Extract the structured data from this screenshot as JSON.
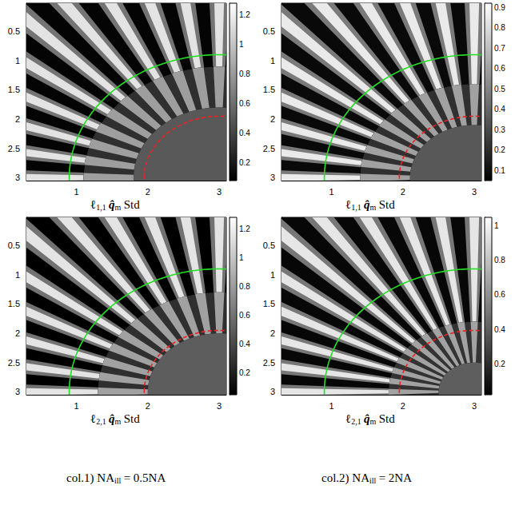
{
  "chart_data": [
    {
      "type": "image",
      "caption": [
        {
          "text": "ℓ",
          "sub": "1,1"
        },
        {
          "text": "q̂",
          "sub": "m"
        },
        {
          "text": "Std"
        }
      ],
      "xlim": [
        0.3,
        3.1
      ],
      "xticks": [
        1,
        2,
        3
      ],
      "ylim": [
        0.02,
        3.05
      ],
      "yticks": [
        0.5,
        1,
        1.5,
        2,
        2.5,
        3
      ],
      "colorbar": {
        "range": [
          0.08,
          1.28
        ],
        "ticks": [
          0.2,
          0.4,
          0.6,
          0.8,
          1,
          1.2
        ]
      },
      "star_center": [
        3,
        3
      ],
      "spoke_angles": [
        0,
        9,
        18,
        27,
        36,
        45,
        54,
        63,
        72,
        81,
        90
      ],
      "bright_value": 1.15,
      "dark_value": 0.1,
      "center_value": 0.5,
      "full_contrast_radius": 1.9,
      "blur_radius": 1.2,
      "circles": [
        {
          "center": [
            3,
            3
          ],
          "radius": 2.1,
          "color": "#22e022",
          "line_style": "solid"
        },
        {
          "center": [
            3,
            3
          ],
          "radius": 1.05,
          "color": "#ee2222",
          "line_style": "dashed"
        }
      ]
    },
    {
      "type": "image",
      "caption": [
        {
          "text": "ℓ",
          "sub": "1,1"
        },
        {
          "text": "q̂",
          "sub": "m"
        },
        {
          "text": "Std"
        }
      ],
      "xlim": [
        0.3,
        3.1
      ],
      "xticks": [
        1,
        2,
        3
      ],
      "ylim": [
        0.02,
        3.05
      ],
      "yticks": [
        0.5,
        1,
        1.5,
        2,
        2.5,
        3
      ],
      "colorbar": {
        "range": [
          0.05,
          0.92
        ],
        "ticks": [
          0.1,
          0.2,
          0.3,
          0.4,
          0.5,
          0.6,
          0.7,
          0.8,
          0.9
        ]
      },
      "star_center": [
        3,
        3
      ],
      "spoke_angles": [
        0,
        9,
        18,
        27,
        36,
        45,
        54,
        63,
        72,
        81,
        90
      ],
      "bright_value": 0.85,
      "dark_value": 0.08,
      "center_value": 0.35,
      "full_contrast_radius": 1.6,
      "blur_radius": 0.9,
      "circles": [
        {
          "center": [
            3,
            3
          ],
          "radius": 2.1,
          "color": "#22e022",
          "line_style": "solid"
        },
        {
          "center": [
            3,
            3
          ],
          "radius": 1.05,
          "color": "#ee2222",
          "line_style": "dashed"
        }
      ]
    },
    {
      "type": "image",
      "caption": [
        {
          "text": "ℓ",
          "sub": "2,1"
        },
        {
          "text": "q̂",
          "sub": "m"
        },
        {
          "text": "Std"
        }
      ],
      "xlim": [
        0.3,
        3.1
      ],
      "xticks": [
        1,
        2,
        3
      ],
      "ylim": [
        0.02,
        3.05
      ],
      "yticks": [
        0.5,
        1,
        1.5,
        2,
        2.5,
        3
      ],
      "colorbar": {
        "range": [
          0.05,
          1.28
        ],
        "ticks": [
          0.2,
          0.4,
          0.6,
          0.8,
          1,
          1.2
        ]
      },
      "star_center": [
        3,
        3
      ],
      "spoke_angles": [
        0,
        9,
        18,
        27,
        36,
        45,
        54,
        63,
        72,
        81,
        90
      ],
      "bright_value": 1.15,
      "dark_value": 0.05,
      "center_value": 0.5,
      "full_contrast_radius": 1.7,
      "blur_radius": 1.0,
      "circles": [
        {
          "center": [
            3,
            3
          ],
          "radius": 2.1,
          "color": "#22e022",
          "line_style": "solid"
        },
        {
          "center": [
            3,
            3
          ],
          "radius": 1.05,
          "color": "#ee2222",
          "line_style": "dashed"
        }
      ]
    },
    {
      "type": "image",
      "caption": [
        {
          "text": "ℓ",
          "sub": "2,1"
        },
        {
          "text": "q̂",
          "sub": "m"
        },
        {
          "text": "Std"
        }
      ],
      "xlim": [
        0.3,
        3.1
      ],
      "xticks": [
        1,
        2,
        3
      ],
      "ylim": [
        0.02,
        3.05
      ],
      "yticks": [
        0.5,
        1,
        1.5,
        2,
        2.5,
        3
      ],
      "colorbar": {
        "range": [
          0.02,
          1.05
        ],
        "ticks": [
          0.2,
          0.4,
          0.6,
          0.8,
          1
        ]
      },
      "star_center": [
        3,
        3
      ],
      "spoke_angles": [
        0,
        9,
        18,
        27,
        36,
        45,
        54,
        63,
        72,
        81,
        90
      ],
      "bright_value": 0.95,
      "dark_value": 0.05,
      "center_value": 0.4,
      "full_contrast_radius": 1.2,
      "blur_radius": 0.5,
      "circles": [
        {
          "center": [
            3,
            3
          ],
          "radius": 2.1,
          "color": "#22e022",
          "line_style": "solid"
        },
        {
          "center": [
            3,
            3
          ],
          "radius": 1.05,
          "color": "#ee2222",
          "line_style": "dashed"
        }
      ]
    }
  ],
  "column_captions": [
    [
      {
        "text": "col.1) NA",
        "sub": "ill"
      },
      {
        "text": "= 0.5NA"
      }
    ],
    [
      {
        "text": "col.2) NA",
        "sub": "ill"
      },
      {
        "text": "= 2NA"
      }
    ]
  ]
}
